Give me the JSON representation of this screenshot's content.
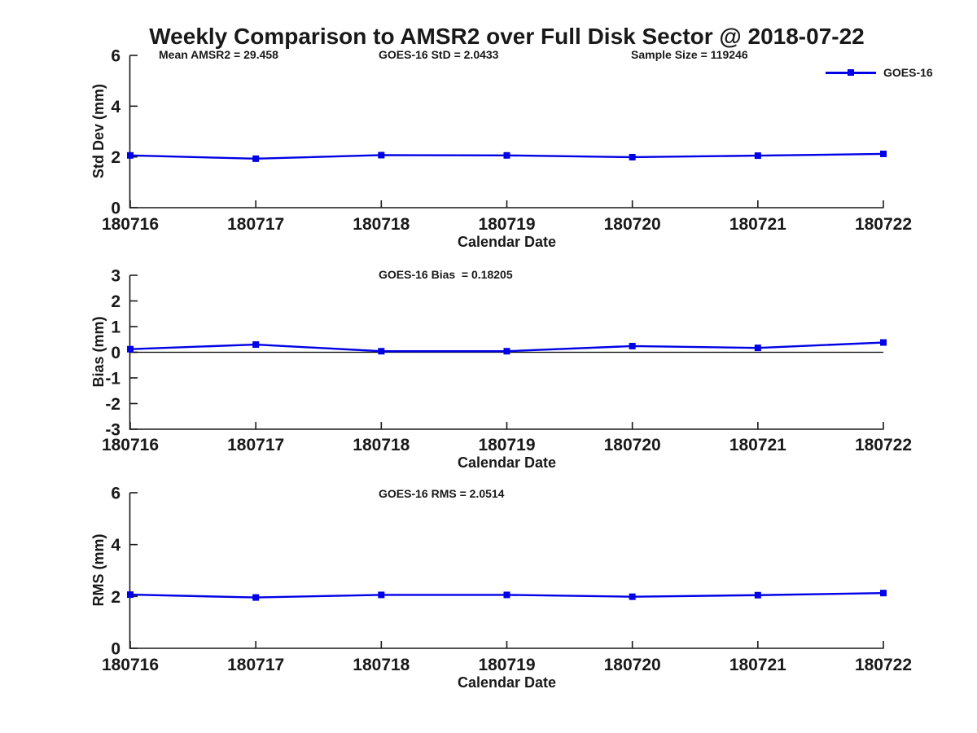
{
  "figure": {
    "title": "Weekly Comparison to AMSR2 over Full Disk Sector @ 2018-07-22",
    "colors": {
      "line": "#0000e6",
      "axis": "#191919",
      "background": "#ffffff"
    }
  },
  "chart_data": [
    {
      "type": "line",
      "name": "std-dev",
      "annotations": [
        "Mean AMSR2 = 29.458",
        "GOES-16 StD = 2.0433",
        "Sample Size = 119246"
      ],
      "categories": [
        "180716",
        "180717",
        "180718",
        "180719",
        "180720",
        "180721",
        "180722"
      ],
      "series": [
        {
          "name": "GOES-16",
          "values": [
            2.06,
            1.93,
            2.07,
            2.06,
            1.99,
            2.05,
            2.12
          ]
        }
      ],
      "xlabel": "Calendar Date",
      "ylabel": "Std Dev (mm)",
      "ylim": [
        0,
        6
      ],
      "yticks": [
        0,
        2,
        4,
        6
      ],
      "zero_line": false,
      "grid": false,
      "legend_position": "top-right-outside",
      "marker": "square"
    },
    {
      "type": "line",
      "name": "bias",
      "annotations": [
        "GOES-16 Bias  = 0.18205"
      ],
      "categories": [
        "180716",
        "180717",
        "180718",
        "180719",
        "180720",
        "180721",
        "180722"
      ],
      "series": [
        {
          "name": "GOES-16",
          "values": [
            0.12,
            0.3,
            0.04,
            0.04,
            0.24,
            0.17,
            0.38
          ]
        }
      ],
      "xlabel": "Calendar Date",
      "ylabel": "Bias (mm)",
      "ylim": [
        -3,
        3
      ],
      "yticks": [
        3,
        2,
        1,
        0,
        -1,
        -2,
        -3
      ],
      "zero_line": true,
      "grid": false,
      "marker": "square"
    },
    {
      "type": "line",
      "name": "rms",
      "annotations": [
        "GOES-16 RMS = 2.0514"
      ],
      "categories": [
        "180716",
        "180717",
        "180718",
        "180719",
        "180720",
        "180721",
        "180722"
      ],
      "series": [
        {
          "name": "GOES-16",
          "values": [
            2.07,
            1.96,
            2.06,
            2.06,
            1.99,
            2.05,
            2.13
          ]
        }
      ],
      "xlabel": "Calendar Date",
      "ylabel": "RMS (mm)",
      "ylim": [
        0,
        6
      ],
      "yticks": [
        0,
        2,
        4,
        6
      ],
      "zero_line": false,
      "grid": false,
      "marker": "square"
    }
  ]
}
